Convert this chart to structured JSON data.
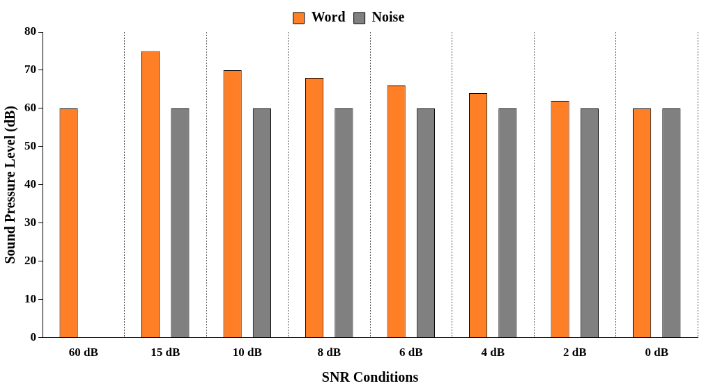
{
  "chart_data": {
    "type": "bar",
    "xlabel": "SNR Conditions",
    "ylabel": "Sound Pressure Level (dB)",
    "categories": [
      "60 dB",
      "15 dB",
      "10 dB",
      "8 dB",
      "6 dB",
      "4 dB",
      "2 dB",
      "0 dB"
    ],
    "series": [
      {
        "name": "Word",
        "color": "#ff7f27",
        "values": [
          60,
          75,
          70,
          68,
          66,
          64,
          62,
          60
        ]
      },
      {
        "name": "Noise",
        "color": "#808080",
        "values": [
          null,
          60,
          60,
          60,
          60,
          60,
          60,
          60
        ]
      }
    ],
    "ylim": [
      0,
      80
    ],
    "yticks": [
      0,
      10,
      20,
      30,
      40,
      50,
      60,
      70,
      80
    ],
    "grid": "x",
    "legend": "top"
  }
}
